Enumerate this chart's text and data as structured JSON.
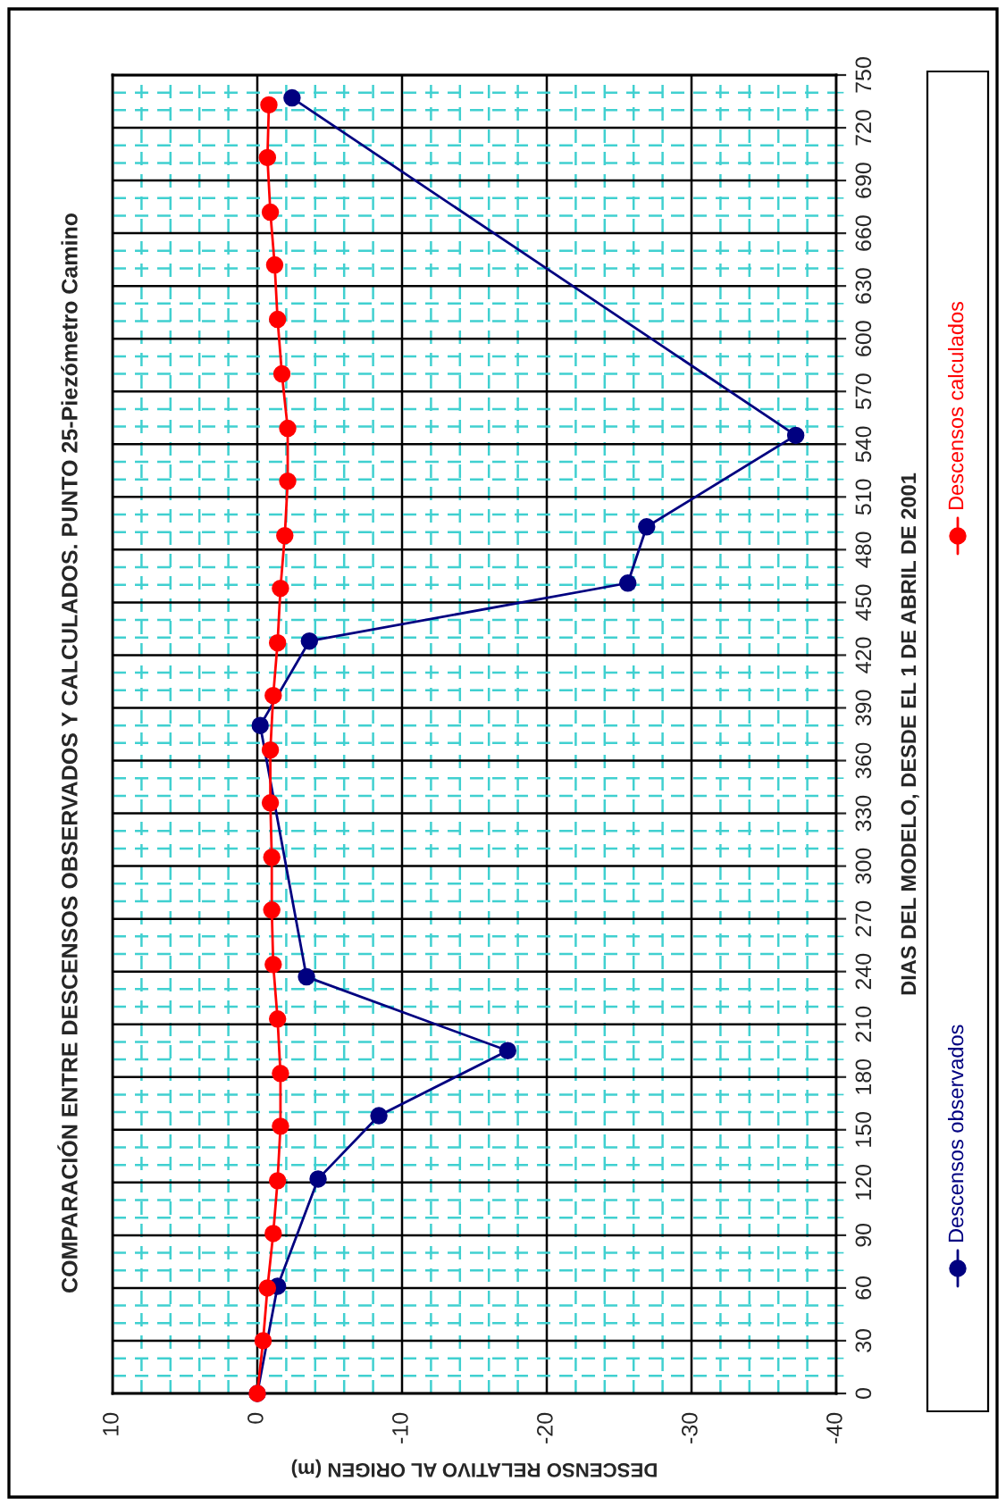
{
  "chart_data": {
    "type": "line",
    "title": "COMPARACIÓN ENTRE DESCENSOS OBSERVADOS Y CALCULADOS. PUNTO 25-Piezómetro Camino",
    "xlabel": "DESCENSO RELATIVO AL ORIGEN (m)",
    "ylabel": "DIAS DEL MODELO, DESDE EL 1 DE ABRIL DE 2001",
    "series": [
      {
        "name": "Descensos observados",
        "color": "#000080",
        "x": [
          0,
          -1.4,
          -4.2,
          -8.4,
          -17.3,
          -3.4,
          -0.2,
          -3.6,
          -25.6,
          -26.9,
          -37.2,
          -2.4
        ],
        "values": [
          0,
          61,
          122,
          158,
          195,
          237,
          380,
          428,
          461,
          493,
          545,
          737
        ]
      },
      {
        "name": "Descensos calculados",
        "color": "#ff0000",
        "x": [
          0,
          -0.4,
          -0.7,
          -1.1,
          -1.4,
          -1.6,
          -1.6,
          -1.4,
          -1.1,
          -1.0,
          -1.0,
          -0.9,
          -0.9,
          -1.1,
          -1.4,
          -1.6,
          -1.9,
          -2.1,
          -2.1,
          -1.7,
          -1.4,
          -1.2,
          -0.9,
          -0.7,
          -0.8
        ],
        "values": [
          0,
          30,
          60,
          91,
          121,
          152,
          182,
          213,
          244,
          275,
          305,
          336,
          366,
          397,
          427,
          458,
          488,
          519,
          549,
          580,
          611,
          642,
          672,
          703,
          733
        ]
      }
    ],
    "xlim": [
      10,
      -40
    ],
    "xticks": [
      10,
      {
        "value": 8,
        "label": null
      },
      {
        "value": 6,
        "label": null
      },
      {
        "value": 4,
        "label": null
      },
      {
        "value": 2,
        "label": null
      },
      0,
      {
        "value": -2,
        "label": null
      },
      {
        "value": -4,
        "label": null
      },
      {
        "value": -6,
        "label": null
      },
      {
        "value": -8,
        "label": null
      },
      -10,
      {
        "value": -12,
        "label": null
      },
      {
        "value": -14,
        "label": null
      },
      {
        "value": -16,
        "label": null
      },
      {
        "value": -18,
        "label": null
      },
      -20,
      {
        "value": -22,
        "label": null
      },
      {
        "value": -24,
        "label": null
      },
      {
        "value": -26,
        "label": null
      },
      {
        "value": -28,
        "label": null
      },
      -30,
      {
        "value": -32,
        "label": null
      },
      {
        "value": -34,
        "label": null
      },
      {
        "value": -36,
        "label": null
      },
      {
        "value": -38,
        "label": null
      },
      -40
    ],
    "ylim": [
      0,
      750
    ],
    "yticks": [
      0,
      {
        "value": 10,
        "label": null
      },
      {
        "value": 20,
        "label": null
      },
      30,
      {
        "value": 40,
        "label": null
      },
      {
        "value": 50,
        "label": null
      },
      60,
      {
        "value": 70,
        "label": null
      },
      {
        "value": 80,
        "label": null
      },
      90,
      {
        "value": 100,
        "label": null
      },
      {
        "value": 110,
        "label": null
      },
      120,
      {
        "value": 130,
        "label": null
      },
      {
        "value": 140,
        "label": null
      },
      150,
      {
        "value": 160,
        "label": null
      },
      {
        "value": 170,
        "label": null
      },
      180,
      {
        "value": 190,
        "label": null
      },
      {
        "value": 200,
        "label": null
      },
      210,
      {
        "value": 220,
        "label": null
      },
      {
        "value": 230,
        "label": null
      },
      240,
      {
        "value": 250,
        "label": null
      },
      {
        "value": 260,
        "label": null
      },
      270,
      {
        "value": 280,
        "label": null
      },
      {
        "value": 290,
        "label": null
      },
      300,
      {
        "value": 310,
        "label": null
      },
      {
        "value": 320,
        "label": null
      },
      330,
      {
        "value": 340,
        "label": null
      },
      {
        "value": 350,
        "label": null
      },
      360,
      {
        "value": 370,
        "label": null
      },
      {
        "value": 380,
        "label": null
      },
      390,
      {
        "value": 400,
        "label": null
      },
      {
        "value": 410,
        "label": null
      },
      420,
      {
        "value": 430,
        "label": null
      },
      {
        "value": 440,
        "label": null
      },
      450,
      {
        "value": 460,
        "label": null
      },
      {
        "value": 470,
        "label": null
      },
      480,
      {
        "value": 490,
        "label": null
      },
      {
        "value": 500,
        "label": null
      },
      510,
      {
        "value": 520,
        "label": null
      },
      {
        "value": 530,
        "label": null
      },
      540,
      {
        "value": 550,
        "label": null
      },
      {
        "value": 560,
        "label": null
      },
      570,
      {
        "value": 580,
        "label": null
      },
      {
        "value": 590,
        "label": null
      },
      600,
      {
        "value": 610,
        "label": null
      },
      {
        "value": 620,
        "label": null
      },
      630,
      {
        "value": 640,
        "label": null
      },
      {
        "value": 650,
        "label": null
      },
      660,
      {
        "value": 670,
        "label": null
      },
      {
        "value": 680,
        "label": null
      },
      690,
      {
        "value": 700,
        "label": null
      },
      {
        "value": 710,
        "label": null
      },
      720,
      {
        "value": 730,
        "label": null
      },
      {
        "value": 740,
        "label": null
      },
      750
    ],
    "grid": true,
    "legend": "right",
    "marker": "circle",
    "line_style": "solid"
  }
}
